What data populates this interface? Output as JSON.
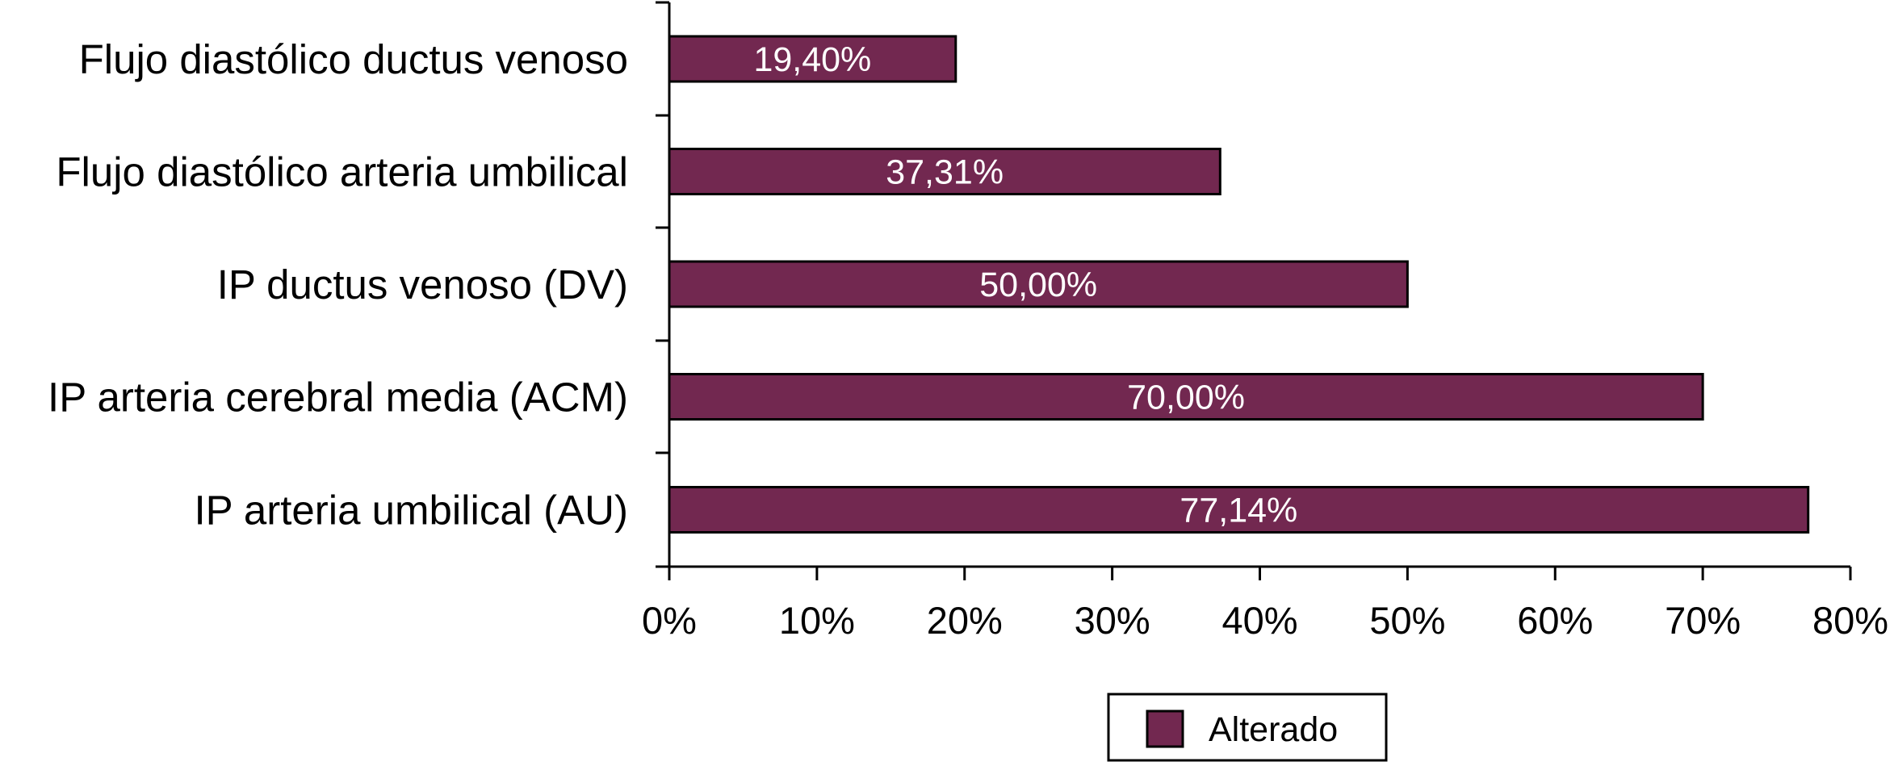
{
  "chart_data": {
    "type": "bar",
    "orientation": "horizontal",
    "categories": [
      "Flujo diastólico ductus venoso",
      "Flujo diastólico arteria umbilical",
      "IP ductus venoso (DV)",
      "IP arteria cerebral media (ACM)",
      "IP arteria umbilical (AU)"
    ],
    "series": [
      {
        "name": "Alterado",
        "values": [
          19.4,
          37.31,
          50.0,
          70.0,
          77.14
        ],
        "labels": [
          "19,40%",
          "37,31%",
          "50,00%",
          "70,00%",
          "77,14%"
        ]
      }
    ],
    "x_ticks": [
      0,
      10,
      20,
      30,
      40,
      50,
      60,
      70,
      80
    ],
    "x_tick_labels": [
      "0%",
      "10%",
      "20%",
      "30%",
      "40%",
      "50%",
      "60%",
      "70%",
      "80%"
    ],
    "xlim": [
      0,
      80
    ],
    "title": "",
    "xlabel": "",
    "ylabel": "",
    "grid": false,
    "legend_position": "bottom-center"
  },
  "colors": {
    "bar_fill": "#722850",
    "bar_stroke": "#000000",
    "axis": "#000000",
    "data_label": "#ffffff"
  }
}
